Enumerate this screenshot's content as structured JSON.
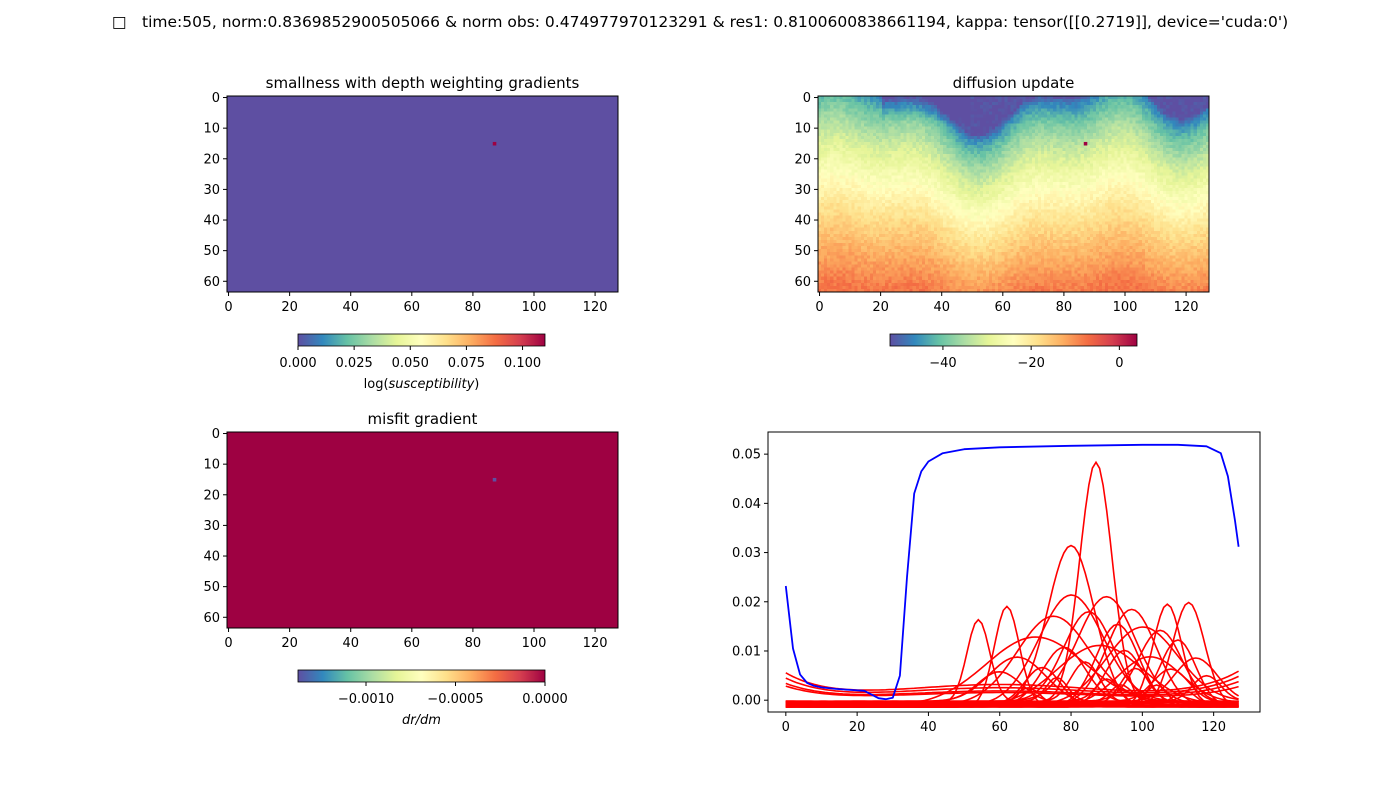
{
  "suptitle": " time:505, norm:0.8369852900505066 & norm obs: 0.474977970123291 & res1: 0.8100600838661194, kappa: tensor([[0.2719]], device='cuda:0')",
  "suptitle_prefix_glyph": "□",
  "colors": {
    "spectral": [
      "#5e4fa2",
      "#3288bd",
      "#66c2a5",
      "#abdda4",
      "#e6f598",
      "#ffffbf",
      "#fee08b",
      "#fdae61",
      "#f46d43",
      "#d53e4f",
      "#9e0142"
    ],
    "line_blue": "#0000ff",
    "line_red": "#ff0000"
  },
  "chart_data": [
    {
      "type": "heatmap",
      "title": "smallness with depth weighting gradients",
      "xlim": [
        0,
        127
      ],
      "ylim": [
        63,
        0
      ],
      "xticks": [
        0,
        20,
        40,
        60,
        80,
        100,
        120
      ],
      "yticks": [
        0,
        10,
        20,
        30,
        40,
        50,
        60
      ],
      "background_value": 0.0,
      "anomaly": {
        "x": 87,
        "y": 15,
        "value": 0.11
      },
      "colorbar": {
        "range": [
          0.0,
          0.11
        ],
        "ticks": [
          "0.000",
          "0.025",
          "0.050",
          "0.075",
          "0.100"
        ],
        "tick_values": [
          0.0,
          0.025,
          0.05,
          0.075,
          0.1
        ],
        "label": "log(susceptibility)"
      }
    },
    {
      "type": "heatmap",
      "title": "diffusion update",
      "xlim": [
        0,
        127
      ],
      "ylim": [
        63,
        0
      ],
      "xticks": [
        0,
        20,
        40,
        60,
        80,
        100,
        120
      ],
      "yticks": [
        0,
        10,
        20,
        30,
        40,
        50,
        60
      ],
      "description_values": {
        "top": -52,
        "bottom": -8
      },
      "anomaly": {
        "x": 87,
        "y": 15,
        "value": 4
      },
      "colorbar": {
        "range": [
          -52,
          4
        ],
        "ticks": [
          "−40",
          "−20",
          "0"
        ],
        "tick_values": [
          -40,
          -20,
          0
        ],
        "label": ""
      }
    },
    {
      "type": "heatmap",
      "title": "misfit gradient",
      "xlim": [
        0,
        127
      ],
      "ylim": [
        63,
        0
      ],
      "xticks": [
        0,
        20,
        40,
        60,
        80,
        100,
        120
      ],
      "yticks": [
        0,
        10,
        20,
        30,
        40,
        50,
        60
      ],
      "background_value": 0.0,
      "anomaly": {
        "x": 87,
        "y": 15,
        "value": -0.00138
      },
      "colorbar": {
        "range": [
          -0.00138,
          0.0
        ],
        "ticks": [
          "−0.0010",
          "−0.0005",
          "0.0000"
        ],
        "tick_values": [
          -0.001,
          -0.0005,
          0.0
        ],
        "label": "dr/dm"
      }
    },
    {
      "type": "line",
      "title": "",
      "xlim": [
        -5,
        133
      ],
      "ylim": [
        -0.0024,
        0.0545
      ],
      "xticks": [
        0,
        20,
        40,
        60,
        80,
        100,
        120
      ],
      "yticks": [
        0.0,
        0.01,
        0.02,
        0.03,
        0.04,
        0.05
      ],
      "ytick_labels": [
        "0.00",
        "0.01",
        "0.02",
        "0.03",
        "0.04",
        "0.05"
      ],
      "blue_series": {
        "x": [
          0,
          2,
          4,
          6,
          8,
          10,
          14,
          18,
          22,
          26,
          28,
          30,
          32,
          34,
          36,
          38,
          40,
          44,
          50,
          60,
          80,
          100,
          110,
          118,
          122,
          124,
          126,
          127
        ],
        "y": [
          0.0232,
          0.0105,
          0.0052,
          0.0035,
          0.0029,
          0.0026,
          0.0023,
          0.0021,
          0.0019,
          0.0004,
          0.0002,
          0.0005,
          0.005,
          0.025,
          0.042,
          0.0465,
          0.0485,
          0.0502,
          0.051,
          0.0514,
          0.0517,
          0.0519,
          0.0519,
          0.0516,
          0.0502,
          0.0455,
          0.0365,
          0.0312
        ]
      },
      "red_peaks": [
        {
          "c": 87,
          "a": 0.049,
          "w": 4.5
        },
        {
          "c": 80,
          "a": 0.0328,
          "w": 6.5
        },
        {
          "c": 62,
          "a": 0.0203,
          "w": 3.5
        },
        {
          "c": 54,
          "a": 0.0168,
          "w": 3.2
        },
        {
          "c": 113,
          "a": 0.0212,
          "w": 4.5
        },
        {
          "c": 107,
          "a": 0.0206,
          "w": 4.0
        },
        {
          "c": 80,
          "a": 0.022,
          "w": 9
        },
        {
          "c": 90,
          "a": 0.0214,
          "w": 8
        },
        {
          "c": 97,
          "a": 0.0198,
          "w": 7
        },
        {
          "c": 70,
          "a": 0.0142,
          "w": 14
        },
        {
          "c": 75,
          "a": 0.0175,
          "w": 10
        },
        {
          "c": 85,
          "a": 0.0185,
          "w": 7
        },
        {
          "c": 93,
          "a": 0.0168,
          "w": 6
        },
        {
          "c": 100,
          "a": 0.0155,
          "w": 10
        },
        {
          "c": 105,
          "a": 0.0145,
          "w": 6
        },
        {
          "c": 110,
          "a": 0.0135,
          "w": 5
        },
        {
          "c": 88,
          "a": 0.0125,
          "w": 12
        },
        {
          "c": 78,
          "a": 0.0115,
          "w": 6
        },
        {
          "c": 95,
          "a": 0.0105,
          "w": 5
        },
        {
          "c": 65,
          "a": 0.0095,
          "w": 8
        },
        {
          "c": 102,
          "a": 0.0098,
          "w": 9
        },
        {
          "c": 115,
          "a": 0.0088,
          "w": 6
        },
        {
          "c": 84,
          "a": 0.0082,
          "w": 4
        },
        {
          "c": 72,
          "a": 0.0078,
          "w": 5
        },
        {
          "c": 98,
          "a": 0.0072,
          "w": 4
        },
        {
          "c": 108,
          "a": 0.0066,
          "w": 5
        },
        {
          "c": 60,
          "a": 0.0061,
          "w": 6
        },
        {
          "c": 90,
          "a": 0.0057,
          "w": 3.5
        },
        {
          "c": 118,
          "a": 0.0052,
          "w": 4
        },
        {
          "c": 76,
          "a": 0.0048,
          "w": 3
        },
        {
          "c": 104,
          "a": 0.0044,
          "w": 3
        },
        {
          "c": 68,
          "a": 0.0039,
          "w": 3.5
        },
        {
          "c": 94,
          "a": 0.0034,
          "w": 3
        },
        {
          "c": 112,
          "a": 0.0028,
          "w": 3
        }
      ],
      "red_trends": [
        {
          "y0": 0.0055,
          "m": 0.08,
          "y1": 0.006
        },
        {
          "y0": 0.0045,
          "m": 0.0,
          "y1": 0.005
        },
        {
          "y0": 0.0035,
          "m": 0.0,
          "y1": 0.004
        },
        {
          "y0": 0.003,
          "m": 0.0,
          "y1": 0.003
        }
      ]
    }
  ]
}
